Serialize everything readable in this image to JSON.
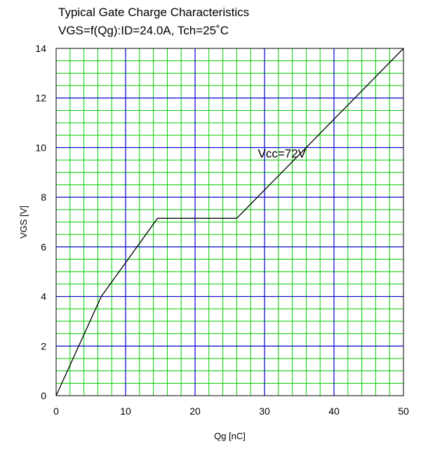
{
  "chart_data": {
    "type": "line",
    "title": "Typical Gate Charge Characteristics",
    "subtitle": "VGS=f(Qg):ID=24.0A, Tch=25˚C",
    "xlabel": "Qg [nC]",
    "ylabel": "VGS [V]",
    "xlim": [
      0,
      50
    ],
    "ylim": [
      0,
      14
    ],
    "x_ticks": [
      0,
      10,
      20,
      30,
      40,
      50
    ],
    "y_ticks": [
      0,
      2,
      4,
      6,
      8,
      10,
      12,
      14
    ],
    "grid": true,
    "colors": {
      "major_grid": "#0000cc",
      "minor_grid": "#00cc00",
      "line": "#000000"
    },
    "series": [
      {
        "x": [
          0,
          6.5,
          14.6,
          26.0,
          50
        ],
        "y": [
          0,
          4.0,
          7.15,
          7.15,
          14.0
        ]
      }
    ],
    "annotations": [
      {
        "text": "Vcc=72V",
        "x": 32.5,
        "y": 9.6
      }
    ]
  }
}
